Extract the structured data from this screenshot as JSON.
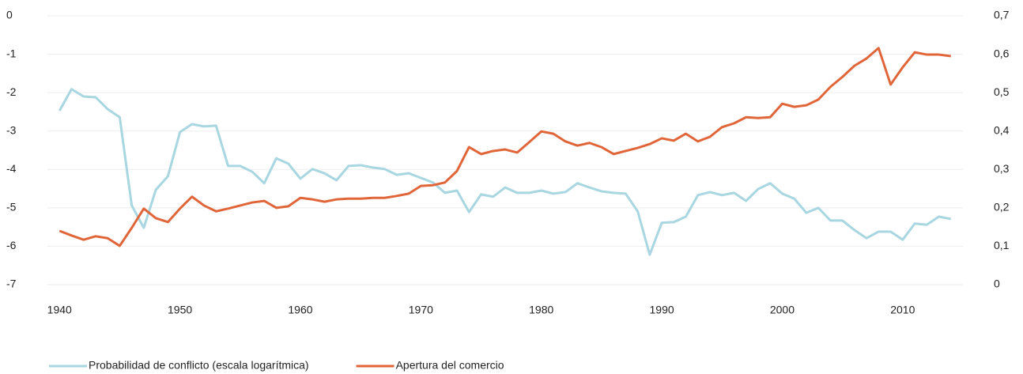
{
  "chart_data": {
    "type": "line",
    "x": [
      1940,
      1941,
      1942,
      1943,
      1944,
      1945,
      1946,
      1947,
      1948,
      1949,
      1950,
      1951,
      1952,
      1953,
      1954,
      1955,
      1956,
      1957,
      1958,
      1959,
      1960,
      1961,
      1962,
      1963,
      1964,
      1965,
      1966,
      1967,
      1968,
      1969,
      1970,
      1971,
      1972,
      1973,
      1974,
      1975,
      1976,
      1977,
      1978,
      1979,
      1980,
      1981,
      1982,
      1983,
      1984,
      1985,
      1986,
      1987,
      1988,
      1989,
      1990,
      1991,
      1992,
      1993,
      1994,
      1995,
      1996,
      1997,
      1998,
      1999,
      2000,
      2001,
      2002,
      2003,
      2004,
      2005,
      2006,
      2007,
      2008,
      2009,
      2010,
      2011,
      2012,
      2013,
      2014
    ],
    "series": [
      {
        "name": "Probabilidad de conflicto (escala logarítmica)",
        "color": "#a8d6e1",
        "axis": "y",
        "values": [
          -2.47,
          -1.91,
          -2.1,
          -2.12,
          -2.43,
          -2.64,
          -4.94,
          -5.52,
          -4.53,
          -4.18,
          -3.03,
          -2.82,
          -2.88,
          -2.86,
          -3.91,
          -3.91,
          -4.06,
          -4.36,
          -3.71,
          -3.85,
          -4.24,
          -3.99,
          -4.1,
          -4.28,
          -3.91,
          -3.89,
          -3.95,
          -3.99,
          -4.14,
          -4.1,
          -4.22,
          -4.34,
          -4.61,
          -4.55,
          -5.11,
          -4.65,
          -4.71,
          -4.47,
          -4.61,
          -4.61,
          -4.55,
          -4.63,
          -4.59,
          -4.36,
          -4.47,
          -4.57,
          -4.61,
          -4.63,
          -5.09,
          -6.22,
          -5.39,
          -5.37,
          -5.23,
          -4.67,
          -4.59,
          -4.67,
          -4.61,
          -4.82,
          -4.51,
          -4.36,
          -4.63,
          -4.76,
          -5.13,
          -5.0,
          -5.33,
          -5.33,
          -5.58,
          -5.79,
          -5.62,
          -5.62,
          -5.83,
          -5.41,
          -5.44,
          -5.23,
          -5.29
        ]
      },
      {
        "name": "Apertura del comercio",
        "color": "#e0663a",
        "axis": "y2",
        "values": [
          0.14,
          0.128,
          0.117,
          0.126,
          0.121,
          0.101,
          0.148,
          0.198,
          0.173,
          0.163,
          0.198,
          0.229,
          0.206,
          0.191,
          0.198,
          0.206,
          0.214,
          0.218,
          0.2,
          0.204,
          0.226,
          0.222,
          0.216,
          0.222,
          0.224,
          0.224,
          0.226,
          0.226,
          0.231,
          0.237,
          0.257,
          0.259,
          0.266,
          0.296,
          0.358,
          0.34,
          0.348,
          0.352,
          0.344,
          0.371,
          0.399,
          0.393,
          0.373,
          0.362,
          0.369,
          0.358,
          0.34,
          0.348,
          0.356,
          0.366,
          0.381,
          0.375,
          0.393,
          0.373,
          0.385,
          0.41,
          0.42,
          0.436,
          0.434,
          0.436,
          0.471,
          0.463,
          0.467,
          0.482,
          0.515,
          0.541,
          0.57,
          0.589,
          0.616,
          0.521,
          0.566,
          0.605,
          0.599,
          0.599,
          0.595
        ]
      }
    ],
    "xlim": [
      1939,
      2015
    ],
    "xticks": [
      1940,
      1950,
      1960,
      1970,
      1980,
      1990,
      2000,
      2010
    ],
    "ylim": [
      -7,
      0
    ],
    "yticks": [
      0,
      -1,
      -2,
      -3,
      -4,
      -5,
      -6,
      -7
    ],
    "y2lim": [
      0,
      0.7
    ],
    "y2ticks": [
      {
        "value": 0.7,
        "label": "0,7"
      },
      {
        "value": 0.6,
        "label": "0,6"
      },
      {
        "value": 0.5,
        "label": "0,5"
      },
      {
        "value": 0.4,
        "label": "0,4"
      },
      {
        "value": 0.3,
        "label": "0,3"
      },
      {
        "value": 0.2,
        "label": "0,2"
      },
      {
        "value": 0.1,
        "label": "0,1"
      },
      0
    ],
    "grid": true,
    "legend": "bottom"
  }
}
